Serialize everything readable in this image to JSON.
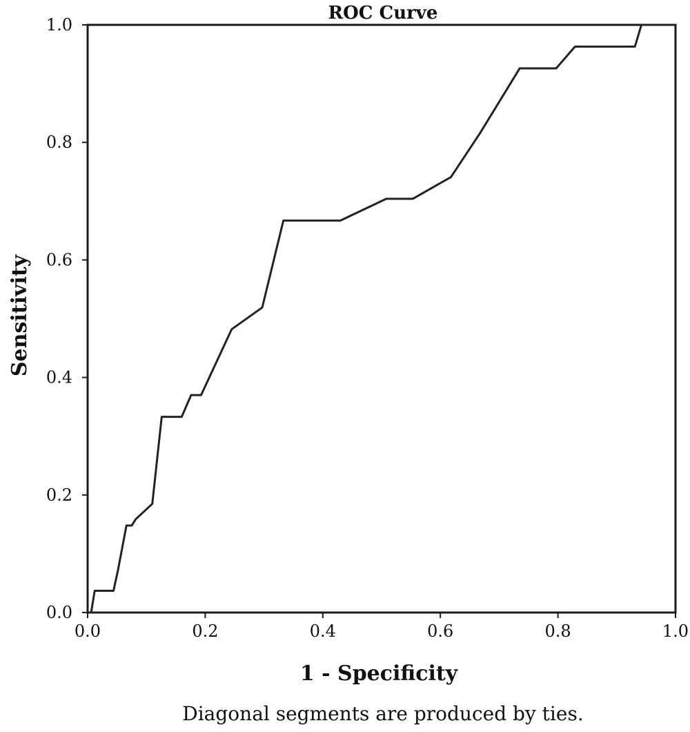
{
  "chart_data": {
    "type": "line",
    "title": "ROC Curve",
    "xlabel": "1 - Specificity",
    "ylabel": "Sensitivity",
    "footnote": "Diagonal segments are produced by ties.",
    "xlim": [
      0.0,
      1.0
    ],
    "ylim": [
      0.0,
      1.0
    ],
    "xticks": [
      "0.0",
      "0.2",
      "0.4",
      "0.6",
      "0.8",
      "1.0"
    ],
    "yticks": [
      "0.0",
      "0.2",
      "0.4",
      "0.6",
      "0.8",
      "1.0"
    ],
    "grid": false,
    "line_color": "#222222",
    "series": [
      {
        "x": [
          0.0,
          0.006,
          0.012,
          0.044,
          0.052,
          0.066,
          0.075,
          0.082,
          0.11,
          0.126,
          0.16,
          0.176,
          0.193,
          0.245,
          0.297,
          0.333,
          0.43,
          0.508,
          0.553,
          0.618,
          0.667,
          0.735,
          0.797,
          0.829,
          0.931,
          0.942,
          1.0
        ],
        "y": [
          0.0,
          0.0,
          0.037,
          0.037,
          0.074,
          0.148,
          0.148,
          0.159,
          0.185,
          0.333,
          0.333,
          0.37,
          0.37,
          0.482,
          0.519,
          0.667,
          0.667,
          0.704,
          0.704,
          0.741,
          0.815,
          0.926,
          0.926,
          0.963,
          0.963,
          1.0,
          1.0
        ]
      }
    ]
  }
}
